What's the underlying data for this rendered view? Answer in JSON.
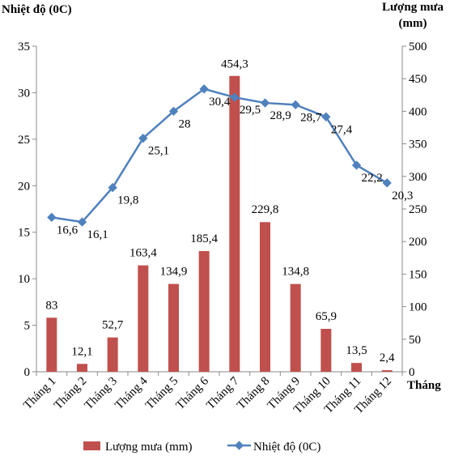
{
  "chart_data": {
    "type": "bar+line",
    "categories": [
      "Tháng 1",
      "Tháng 2",
      "Tháng 3",
      "Tháng 4",
      "Tháng 5",
      "Tháng 6",
      "Tháng 7",
      "Tháng 8",
      "Tháng 9",
      "Tháng 10",
      "Tháng 11",
      "Tháng 12"
    ],
    "xlabel": "Tháng",
    "y_left_label": "Nhiệt độ (0C)",
    "y_right_label_lines": [
      "Lượng mưa",
      "(mm)"
    ],
    "y_left_range": [
      0,
      35
    ],
    "y_left_ticks": [
      "0",
      "5",
      "10",
      "15",
      "20",
      "25",
      "30",
      "35"
    ],
    "y_right_range": [
      0,
      500
    ],
    "y_right_ticks": [
      "0",
      "50",
      "100",
      "150",
      "200",
      "250",
      "300",
      "350",
      "400",
      "450",
      "500"
    ],
    "grid": false,
    "legend_position": "bottom",
    "series": [
      {
        "name": "Lượng mưa  (mm)",
        "kind": "bar",
        "axis": "right",
        "color": "#C0504D",
        "values": [
          83,
          12.1,
          52.7,
          163.4,
          134.9,
          185.4,
          454.3,
          229.8,
          134.8,
          65.9,
          13.5,
          2.4
        ],
        "labels": [
          "83",
          "12,1",
          "52,7",
          "163,4",
          "134,9",
          "185,4",
          "454,3",
          "229,8",
          "134,8",
          "65,9",
          "13,5",
          "2,4"
        ]
      },
      {
        "name": "Nhiệt độ  (0C)",
        "kind": "line",
        "axis": "left",
        "color": "#4F81BD",
        "values": [
          16.6,
          16.1,
          19.8,
          25.1,
          28,
          30.4,
          29.5,
          28.9,
          28.7,
          27.4,
          22.2,
          20.3
        ],
        "labels": [
          "16,6",
          "16,1",
          "19,8",
          "25,1",
          "28",
          "30,4",
          "29,5",
          "28,9",
          "28,7",
          "27,4",
          "22,2",
          "20,3"
        ]
      }
    ]
  }
}
